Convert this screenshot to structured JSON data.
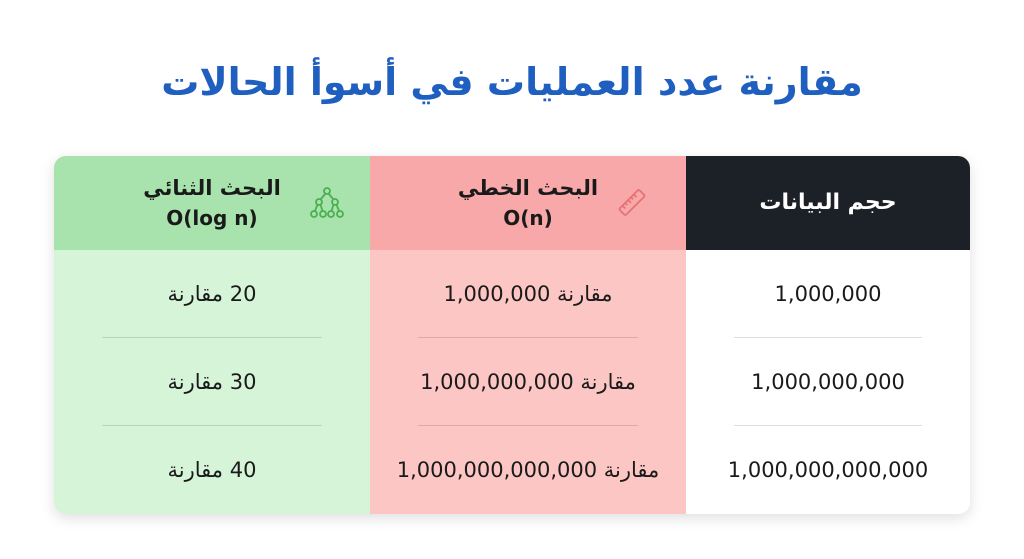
{
  "title": "مقارنة عدد العمليات في أسوأ الحالات",
  "colors": {
    "title": "#1f5fbf",
    "binary_header": "#a8e3ad",
    "binary_body": "#d6f4d8",
    "linear_header": "#f8a8a8",
    "linear_body": "#fcc6c4",
    "size_header": "#1c2127",
    "icon_green": "#4caf50",
    "icon_red": "#e57373"
  },
  "columns": {
    "binary": {
      "name": "البحث الثنائي",
      "complexity": "O(log n)",
      "icon": "tree-icon",
      "rows": [
        "20 مقارنة",
        "30 مقارنة",
        "40 مقارنة"
      ]
    },
    "linear": {
      "name": "البحث الخطي",
      "complexity": "O(n)",
      "icon": "ruler-icon",
      "rows": [
        "مقارنة 1,000,000",
        "مقارنة 1,000,000,000",
        "مقارنة 1,000,000,000,000"
      ]
    },
    "size": {
      "name": "حجم البيانات",
      "rows": [
        "1,000,000",
        "1,000,000,000",
        "1,000,000,000,000"
      ]
    }
  }
}
